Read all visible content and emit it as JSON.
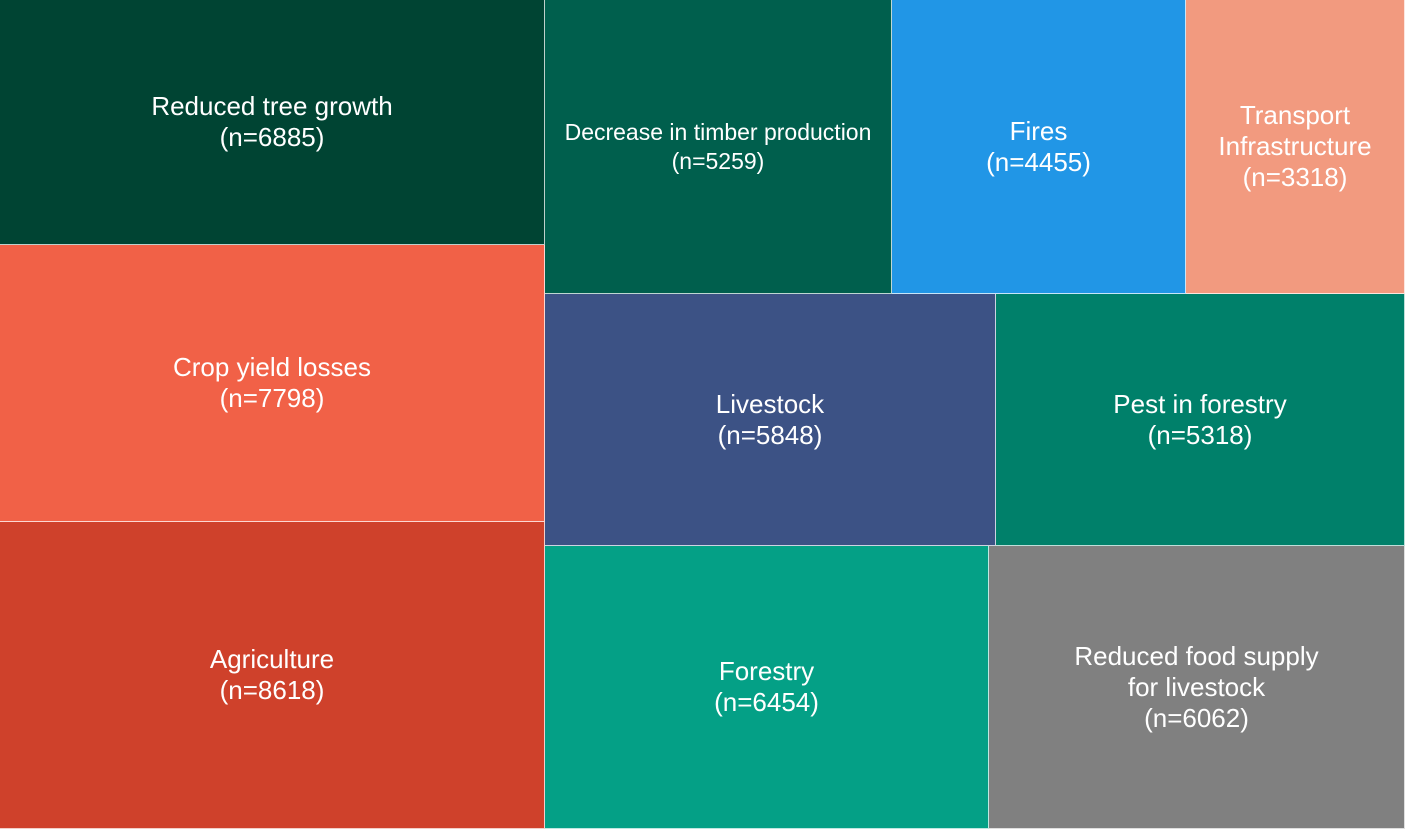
{
  "chart_data": {
    "type": "treemap",
    "items": [
      {
        "name": "Reduced tree growth",
        "label": "Reduced tree growth\n(n=6885)",
        "value": 6885,
        "color": "#004433"
      },
      {
        "name": "Crop yield losses",
        "label": "Crop yield losses\n(n=7798)",
        "value": 7798,
        "color": "#f16147"
      },
      {
        "name": "Agriculture",
        "label": "Agriculture\n(n=8618)",
        "value": 8618,
        "color": "#cf412b"
      },
      {
        "name": "Decrease in timber production",
        "label": "Decrease in timber production\n(n=5259)",
        "value": 5259,
        "color": "#005f4d"
      },
      {
        "name": "Fires",
        "label": "Fires\n(n=4455)",
        "value": 4455,
        "color": "#2196e6"
      },
      {
        "name": "Transport Infrastructure",
        "label": "Transport\nInfrastructure\n(n=3318)",
        "value": 3318,
        "color": "#f29a7f"
      },
      {
        "name": "Livestock",
        "label": "Livestock\n(n=5848)",
        "value": 5848,
        "color": "#3c5285"
      },
      {
        "name": "Pest in forestry",
        "label": "Pest in forestry\n(n=5318)",
        "value": 5318,
        "color": "#00806a"
      },
      {
        "name": "Forestry",
        "label": "Forestry\n(n=6454)",
        "value": 6454,
        "color": "#04a086"
      },
      {
        "name": "Reduced food supply for livestock",
        "label": "Reduced food supply\nfor livestock\n(n=6062)",
        "value": 6062,
        "color": "#808080"
      }
    ]
  }
}
